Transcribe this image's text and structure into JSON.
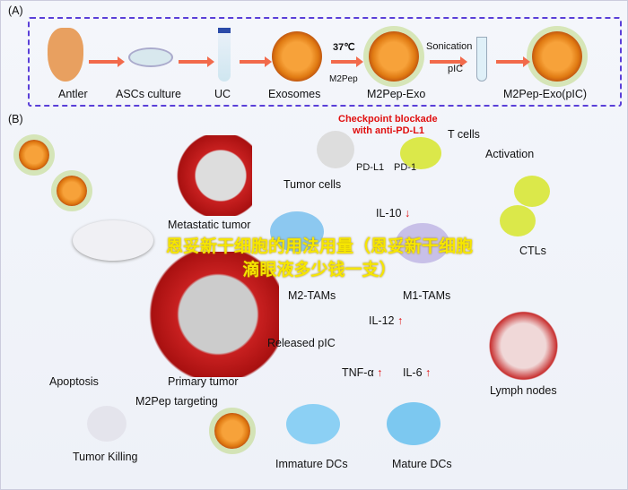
{
  "panel_a": {
    "label": "(A)",
    "steps": [
      "Antler",
      "ASCs culture",
      "UC",
      "Exosomes",
      "M2Pep-Exo",
      "M2Pep-Exo(pIC)"
    ],
    "temp": "37℃",
    "m2pep": "M2Pep",
    "sonication": "Sonication",
    "pic": "pIC"
  },
  "panel_b": {
    "label": "(B)",
    "checkpoint": "Checkpoint blockade",
    "anti": "with anti-PD-L1",
    "t_cells": "T cells",
    "pdl1": "PD-L1",
    "pd1": "PD-1",
    "tumor_cells": "Tumor cells",
    "metastatic": "Metastatic tumor",
    "activation": "Activation",
    "il10": "IL-10",
    "m2tams": "M2-TAMs",
    "m1tams": "M1-TAMs",
    "ctls": "CTLs",
    "released_pic": "Released pIC",
    "il12": "IL-12",
    "primary": "Primary tumor",
    "tnf": "TNF-α",
    "il6": "IL-6",
    "lymph": "Lymph nodes",
    "apoptosis": "Apoptosis",
    "targeting": "M2Pep targeting",
    "killing": "Tumor Killing",
    "immature": "Immature DCs",
    "mature": "Mature DCs",
    "up": "↑",
    "down": "↓"
  },
  "watermark": "恩妥新干细胞的用法用量（恩妥新干细胞滴眼液多少钱一支）",
  "colors": {
    "border": "#5a3fd8",
    "arrow": "#f26a4b",
    "red_text": "#e01010",
    "watermark": "#f6e600"
  }
}
